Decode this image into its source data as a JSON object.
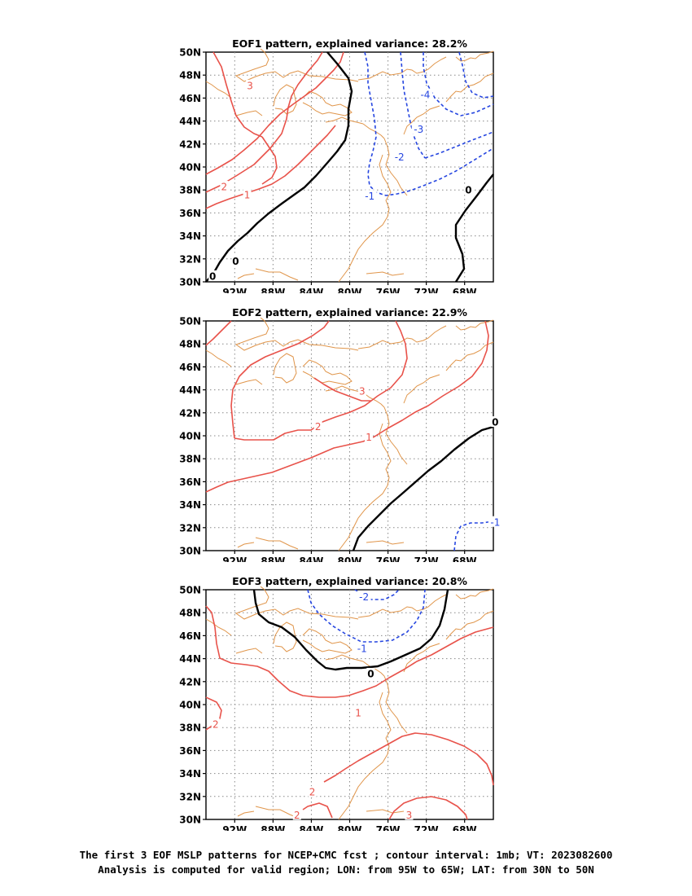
{
  "panels": [
    {
      "title": "EOF1 pattern, explained variance: 28.2%"
    },
    {
      "title": "EOF2 pattern, explained variance: 22.9%"
    },
    {
      "title": "EOF3 pattern, explained variance: 20.8%"
    }
  ],
  "axes": {
    "lat_labels": [
      "50N",
      "48N",
      "46N",
      "44N",
      "42N",
      "40N",
      "38N",
      "36N",
      "34N",
      "32N",
      "30N"
    ],
    "lon_labels": [
      "92W",
      "88W",
      "84W",
      "80W",
      "76W",
      "72W",
      "68W"
    ]
  },
  "caption": {
    "line1": "The first 3 EOF MSLP patterns for NCEP+CMC fcst ; contour interval: 1mb; VT: 2023082600",
    "line2": "Analysis is computed for valid region; LON: from 95W to 65W; LAT: from 30N to 50N"
  },
  "colors": {
    "positive": "#e8524a",
    "negative": "#2646e0",
    "zero": "#000000",
    "coast": "#e0954a",
    "grid": "#888888"
  },
  "contour_labels": [
    [
      {
        "text": "3",
        "lon": -90.4,
        "lat": 47.1,
        "sign": "pos"
      },
      {
        "text": "2",
        "lon": -93.1,
        "lat": 38.3,
        "sign": "pos"
      },
      {
        "text": "1",
        "lon": -90.7,
        "lat": 37.6,
        "sign": "pos"
      },
      {
        "text": "0",
        "lon": -91.9,
        "lat": 31.8,
        "sign": "zero"
      },
      {
        "text": "0",
        "lon": -94.3,
        "lat": 30.5,
        "sign": "zero"
      },
      {
        "text": "0",
        "lon": -67.6,
        "lat": 38.0,
        "sign": "zero"
      },
      {
        "text": "-4",
        "lon": -72.1,
        "lat": 46.3,
        "sign": "neg"
      },
      {
        "text": "-3",
        "lon": -72.8,
        "lat": 43.3,
        "sign": "neg"
      },
      {
        "text": "-2",
        "lon": -74.8,
        "lat": 40.9,
        "sign": "neg"
      },
      {
        "text": "-1",
        "lon": -77.9,
        "lat": 37.5,
        "sign": "neg"
      }
    ],
    [
      {
        "text": "3",
        "lon": -78.7,
        "lat": 43.9,
        "sign": "pos"
      },
      {
        "text": "2",
        "lon": -83.3,
        "lat": 40.8,
        "sign": "pos"
      },
      {
        "text": "1",
        "lon": -78.0,
        "lat": 39.9,
        "sign": "pos"
      },
      {
        "text": "0",
        "lon": -64.8,
        "lat": 41.2,
        "sign": "zero"
      },
      {
        "text": "-1",
        "lon": -64.8,
        "lat": 32.5,
        "sign": "neg"
      }
    ],
    [
      {
        "text": "-2",
        "lon": -78.5,
        "lat": 49.4,
        "sign": "neg"
      },
      {
        "text": "-1",
        "lon": -78.7,
        "lat": 44.9,
        "sign": "neg"
      },
      {
        "text": "0",
        "lon": -77.8,
        "lat": 42.7,
        "sign": "zero"
      },
      {
        "text": "1",
        "lon": -79.1,
        "lat": 39.3,
        "sign": "pos"
      },
      {
        "text": "2",
        "lon": -94.0,
        "lat": 38.3,
        "sign": "pos"
      },
      {
        "text": "2",
        "lon": -83.9,
        "lat": 32.4,
        "sign": "pos"
      },
      {
        "text": "2",
        "lon": -85.5,
        "lat": 30.4,
        "sign": "pos"
      },
      {
        "text": "3",
        "lon": -73.8,
        "lat": 30.4,
        "sign": "pos"
      }
    ]
  ]
}
